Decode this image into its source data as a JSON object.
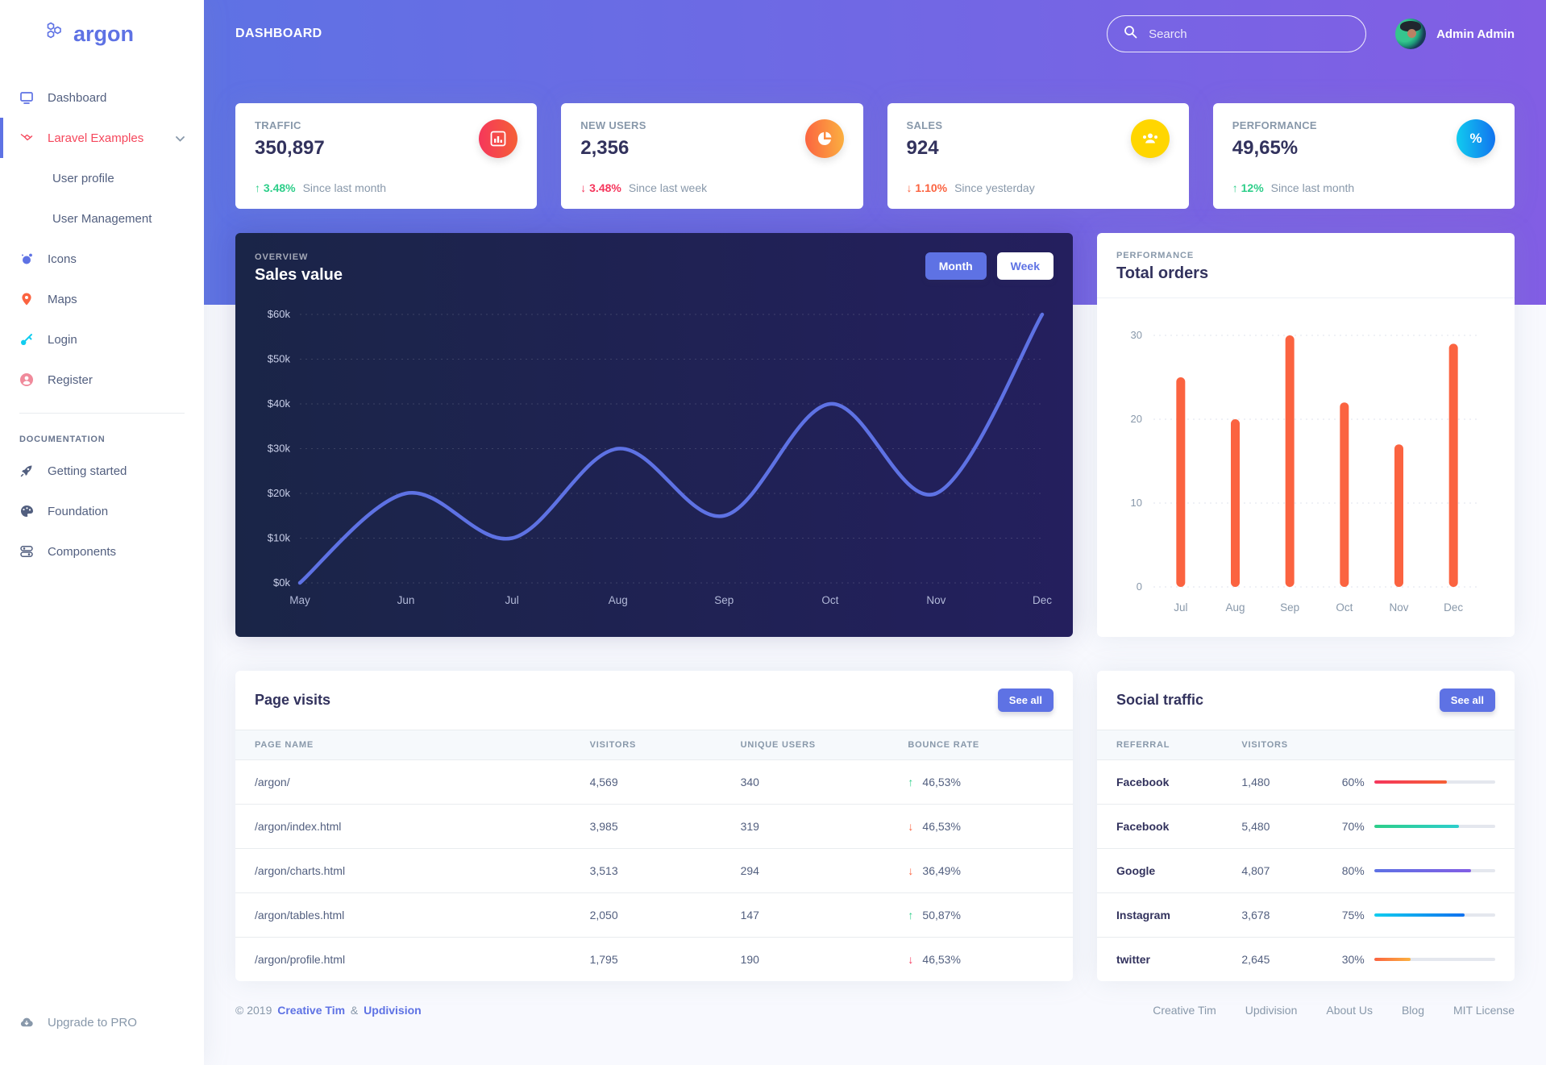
{
  "theme": {
    "primary": "#5e72e4",
    "purple": "#825ee4",
    "danger": "#f5365c",
    "warning": "#fb6340",
    "success": "#2dce89",
    "info": "#11cdef",
    "yellow": "#ffd600",
    "heading": "#32325d",
    "muted": "#8898aa",
    "active_link": "#f5475c"
  },
  "brand": {
    "name": "argon"
  },
  "sidebar": {
    "items": [
      {
        "label": "Dashboard"
      },
      {
        "label": "Laravel Examples"
      },
      {
        "label": "User profile"
      },
      {
        "label": "User Management"
      },
      {
        "label": "Icons"
      },
      {
        "label": "Maps"
      },
      {
        "label": "Login"
      },
      {
        "label": "Register"
      }
    ],
    "section_title": "DOCUMENTATION",
    "doc_items": [
      {
        "label": "Getting started"
      },
      {
        "label": "Foundation"
      },
      {
        "label": "Components"
      }
    ],
    "upgrade_label": "Upgrade to PRO"
  },
  "header": {
    "page_title": "DASHBOARD",
    "search_placeholder": "Search",
    "user_name": "Admin Admin"
  },
  "stats": [
    {
      "label": "TRAFFIC",
      "value": "350,897",
      "arrow": "↑",
      "delta": "3.48%",
      "delta_color": "#2dce89",
      "note": "Since last month"
    },
    {
      "label": "NEW USERS",
      "value": "2,356",
      "arrow": "↓",
      "delta": "3.48%",
      "delta_color": "#f5365c",
      "note": "Since last week"
    },
    {
      "label": "SALES",
      "value": "924",
      "arrow": "↓",
      "delta": "1.10%",
      "delta_color": "#fb6340",
      "note": "Since yesterday"
    },
    {
      "label": "PERFORMANCE",
      "value": "49,65%",
      "arrow": "↑",
      "delta": "12%",
      "delta_color": "#2dce89",
      "note": "Since last month"
    }
  ],
  "overview": {
    "kicker": "OVERVIEW",
    "title": "Sales value",
    "month_label": "Month",
    "week_label": "Week"
  },
  "orders": {
    "kicker": "PERFORMANCE",
    "title": "Total orders"
  },
  "chart_data": [
    {
      "type": "line",
      "title": "Sales value",
      "x": [
        "May",
        "Jun",
        "Jul",
        "Aug",
        "Sep",
        "Oct",
        "Nov",
        "Dec"
      ],
      "y": [
        0,
        20000,
        10000,
        30000,
        15000,
        40000,
        20000,
        60000
      ],
      "y_ticks": [
        {
          "value": 0,
          "label": "$0k"
        },
        {
          "value": 10000,
          "label": "$10k"
        },
        {
          "value": 20000,
          "label": "$20k"
        },
        {
          "value": 30000,
          "label": "$30k"
        },
        {
          "value": 40000,
          "label": "$40k"
        },
        {
          "value": 50000,
          "label": "$50k"
        },
        {
          "value": 60000,
          "label": "$60k"
        }
      ],
      "ylim": [
        0,
        60000
      ],
      "line_color": "#5e72e4",
      "grid": "dotted horizontal",
      "legend": "none"
    },
    {
      "type": "bar",
      "title": "Total orders",
      "x": [
        "Jul",
        "Aug",
        "Sep",
        "Oct",
        "Nov",
        "Dec"
      ],
      "y": [
        25,
        20,
        30,
        22,
        17,
        29
      ],
      "y_ticks": [
        {
          "value": 0,
          "label": "0"
        },
        {
          "value": 10,
          "label": "10"
        },
        {
          "value": 20,
          "label": "20"
        },
        {
          "value": 30,
          "label": "30"
        }
      ],
      "ylim": [
        0,
        30
      ],
      "bar_color": "#fb6340",
      "grid": "dotted horizontal",
      "legend": "none"
    }
  ],
  "page_visits": {
    "title": "Page visits",
    "see_all_label": "See all",
    "columns": [
      "PAGE NAME",
      "VISITORS",
      "UNIQUE USERS",
      "BOUNCE RATE"
    ],
    "rows": [
      {
        "page": "/argon/",
        "visitors": "4,569",
        "unique": "340",
        "arrow": "↑",
        "trend_color": "#2dce89",
        "bounce": "46,53%"
      },
      {
        "page": "/argon/index.html",
        "visitors": "3,985",
        "unique": "319",
        "arrow": "↓",
        "trend_color": "#fb6340",
        "bounce": "46,53%"
      },
      {
        "page": "/argon/charts.html",
        "visitors": "3,513",
        "unique": "294",
        "arrow": "↓",
        "trend_color": "#fb6340",
        "bounce": "36,49%"
      },
      {
        "page": "/argon/tables.html",
        "visitors": "2,050",
        "unique": "147",
        "arrow": "↑",
        "trend_color": "#2dce89",
        "bounce": "50,87%"
      },
      {
        "page": "/argon/profile.html",
        "visitors": "1,795",
        "unique": "190",
        "arrow": "↓",
        "trend_color": "#f5365c",
        "bounce": "46,53%"
      }
    ]
  },
  "social_traffic": {
    "title": "Social traffic",
    "see_all_label": "See all",
    "columns": [
      "REFERRAL",
      "VISITORS"
    ],
    "rows": [
      {
        "referral": "Facebook",
        "visitors": "1,480",
        "percent": 60,
        "bar_colors": [
          "#f5365c",
          "#f56036"
        ]
      },
      {
        "referral": "Facebook",
        "visitors": "5,480",
        "percent": 70,
        "bar_colors": [
          "#2dce89",
          "#2dcecc"
        ]
      },
      {
        "referral": "Google",
        "visitors": "4,807",
        "percent": 80,
        "bar_colors": [
          "#5e72e4",
          "#825ee4"
        ]
      },
      {
        "referral": "Instagram",
        "visitors": "3,678",
        "percent": 75,
        "bar_colors": [
          "#11cdef",
          "#1171ef"
        ]
      },
      {
        "referral": "twitter",
        "visitors": "2,645",
        "percent": 30,
        "bar_colors": [
          "#fb6340",
          "#fbb140"
        ]
      }
    ]
  },
  "footer": {
    "copyright": "© 2019",
    "brand1": "Creative Tim",
    "amp": "&",
    "brand2": "Updivision",
    "links": [
      "Creative Tim",
      "Updivision",
      "About Us",
      "Blog",
      "MIT License"
    ]
  }
}
